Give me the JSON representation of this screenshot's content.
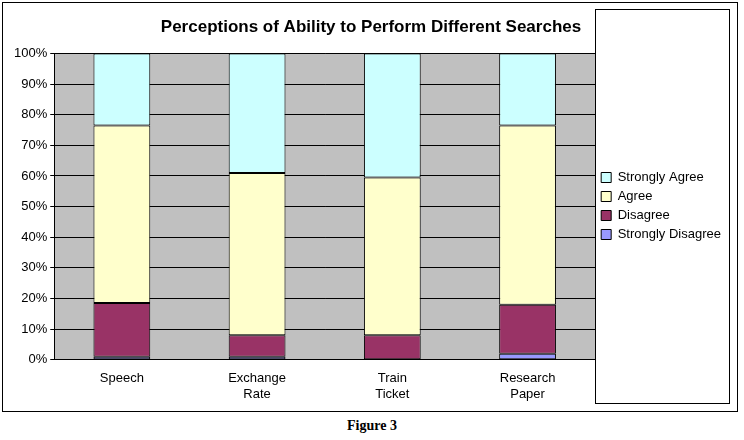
{
  "chart_data": {
    "type": "bar",
    "title": "Perceptions of Ability to Perform Different Searches",
    "caption": "Figure 3",
    "categories": [
      "Speech",
      "Exchange Rate",
      "Train Ticket",
      "Research Paper"
    ],
    "series": [
      {
        "name": "Strongly Disagree",
        "color": "#9999ff",
        "values": [
          1,
          1,
          0,
          2
        ]
      },
      {
        "name": "Disagree",
        "color": "#993366",
        "values": [
          17.5,
          7,
          8,
          16
        ]
      },
      {
        "name": "Agree",
        "color": "#ffffcc",
        "values": [
          58,
          53,
          51.5,
          58.5
        ]
      },
      {
        "name": "Strongly Agree",
        "color": "#ccffff",
        "values": [
          23.5,
          39,
          40.5,
          23.5
        ]
      }
    ],
    "stacked": true,
    "ylim": [
      0,
      100
    ],
    "yticks": [
      {
        "value": 0,
        "label": "0%"
      },
      {
        "value": 10,
        "label": "10%"
      },
      {
        "value": 20,
        "label": "20%"
      },
      {
        "value": 30,
        "label": "30%"
      },
      {
        "value": 40,
        "label": "40%"
      },
      {
        "value": 50,
        "label": "50%"
      },
      {
        "value": 60,
        "label": "60%"
      },
      {
        "value": 70,
        "label": "70%"
      },
      {
        "value": 80,
        "label": "80%"
      },
      {
        "value": 90,
        "label": "90%"
      },
      {
        "value": 100,
        "label": "100%"
      }
    ],
    "grid": true,
    "legend": "right"
  }
}
